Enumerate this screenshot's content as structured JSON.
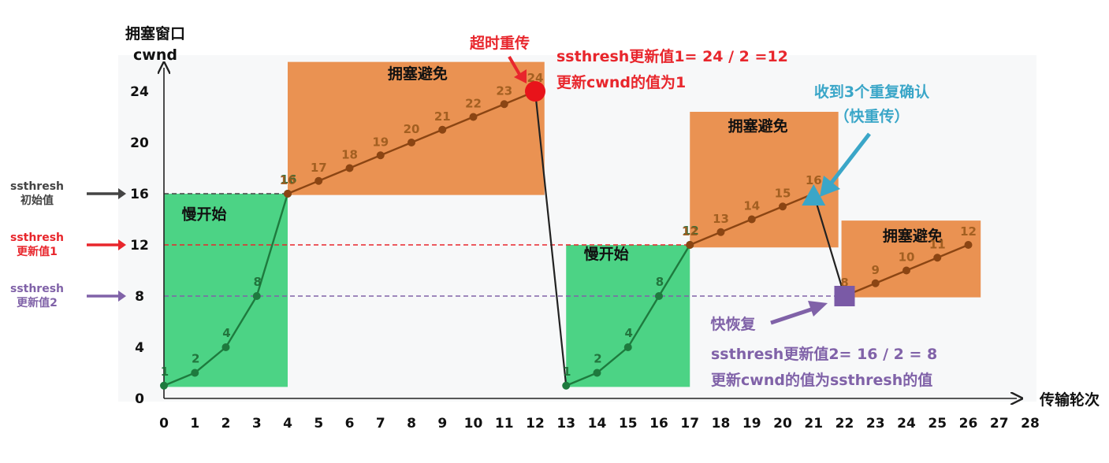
{
  "chart_data": {
    "type": "line",
    "title": "",
    "ylabel": [
      "拥塞窗口",
      "cwnd"
    ],
    "xlabel": "传输轮次",
    "xlim": [
      0,
      28
    ],
    "ylim": [
      0,
      24
    ],
    "x_ticks": [
      0,
      1,
      2,
      3,
      4,
      5,
      6,
      7,
      8,
      9,
      10,
      11,
      12,
      13,
      14,
      15,
      16,
      17,
      18,
      19,
      20,
      21,
      22,
      23,
      24,
      25,
      26,
      27,
      28
    ],
    "y_ticks": [
      0,
      4,
      8,
      12,
      16,
      20,
      24
    ],
    "segments": [
      {
        "phase": "slow-start",
        "color": "#1e7a3e",
        "points": [
          [
            0,
            1
          ],
          [
            1,
            2
          ],
          [
            2,
            4
          ],
          [
            3,
            8
          ],
          [
            4,
            16
          ]
        ],
        "labels": [
          "1",
          "2",
          "4",
          "8",
          "16"
        ]
      },
      {
        "phase": "congestion-avoidance",
        "color": "#8b4513",
        "points": [
          [
            4,
            16
          ],
          [
            5,
            17
          ],
          [
            6,
            18
          ],
          [
            7,
            19
          ],
          [
            8,
            20
          ],
          [
            9,
            21
          ],
          [
            10,
            22
          ],
          [
            11,
            23
          ],
          [
            12,
            24
          ]
        ],
        "labels": [
          "16",
          "17",
          "18",
          "19",
          "20",
          "21",
          "22",
          "23",
          "24"
        ]
      },
      {
        "phase": "slow-start",
        "color": "#1e7a3e",
        "points": [
          [
            13,
            1
          ],
          [
            14,
            2
          ],
          [
            15,
            4
          ],
          [
            16,
            8
          ],
          [
            17,
            12
          ]
        ],
        "labels": [
          "1",
          "2",
          "4",
          "8",
          "12"
        ]
      },
      {
        "phase": "congestion-avoidance",
        "color": "#8b4513",
        "points": [
          [
            17,
            12
          ],
          [
            18,
            13
          ],
          [
            19,
            14
          ],
          [
            20,
            15
          ],
          [
            21,
            16
          ]
        ],
        "labels": [
          "12",
          "13",
          "14",
          "15",
          "16"
        ]
      },
      {
        "phase": "congestion-avoidance",
        "color": "#8b4513",
        "points": [
          [
            22,
            8
          ],
          [
            23,
            9
          ],
          [
            24,
            10
          ],
          [
            25,
            11
          ],
          [
            26,
            12
          ]
        ],
        "labels": [
          "8",
          "9",
          "10",
          "11",
          "12"
        ]
      }
    ],
    "drops": [
      {
        "from": [
          12,
          24
        ],
        "to": [
          13,
          1
        ],
        "event": "timeout"
      },
      {
        "from": [
          21,
          16
        ],
        "to": [
          22,
          8
        ],
        "event": "3-dup-ack"
      }
    ],
    "regions": [
      {
        "label": "慢开始",
        "x": [
          0,
          4
        ],
        "y": [
          0.9,
          16
        ],
        "color": "#2ecc71"
      },
      {
        "label": "拥塞避免",
        "x": [
          4,
          12.3
        ],
        "y": [
          15.9,
          26.3
        ],
        "color": "#e8863f"
      },
      {
        "label": "慢开始",
        "x": [
          13,
          17
        ],
        "y": [
          0.9,
          12
        ],
        "color": "#2ecc71"
      },
      {
        "label": "拥塞避免",
        "x": [
          17,
          21.8
        ],
        "y": [
          11.8,
          22.4
        ],
        "color": "#e8863f"
      },
      {
        "label": "拥塞避免",
        "x": [
          21.9,
          26.4
        ],
        "y": [
          7.9,
          13.9
        ],
        "color": "#e8863f"
      }
    ],
    "thresholds": [
      {
        "y": 16,
        "label": [
          "ssthresh",
          "初始值"
        ],
        "color": "#444444",
        "x_end": 4
      },
      {
        "y": 12,
        "label": [
          "ssthresh",
          "更新值1"
        ],
        "color": "#e8262c",
        "x_end": 17
      },
      {
        "y": 8,
        "label": [
          "ssthresh",
          "更新值2"
        ],
        "color": "#8062a8",
        "x_end": 22
      }
    ],
    "annotations": {
      "timeout": {
        "title": "超时重传",
        "lines": [
          "ssthresh更新值1= 24 / 2 =12",
          "更新cwnd的值为1"
        ],
        "color": "#e8262c"
      },
      "dup_ack": {
        "lines": [
          "收到3个重复确认",
          "（快重传）"
        ],
        "color": "#3aa6c8"
      },
      "fast_recovery": {
        "title": "快恢复",
        "lines": [
          "ssthresh更新值2= 16 / 2 = 8",
          "更新cwnd的值为ssthresh的值"
        ],
        "color": "#8062a8"
      }
    },
    "grid": false,
    "legend": "none"
  }
}
